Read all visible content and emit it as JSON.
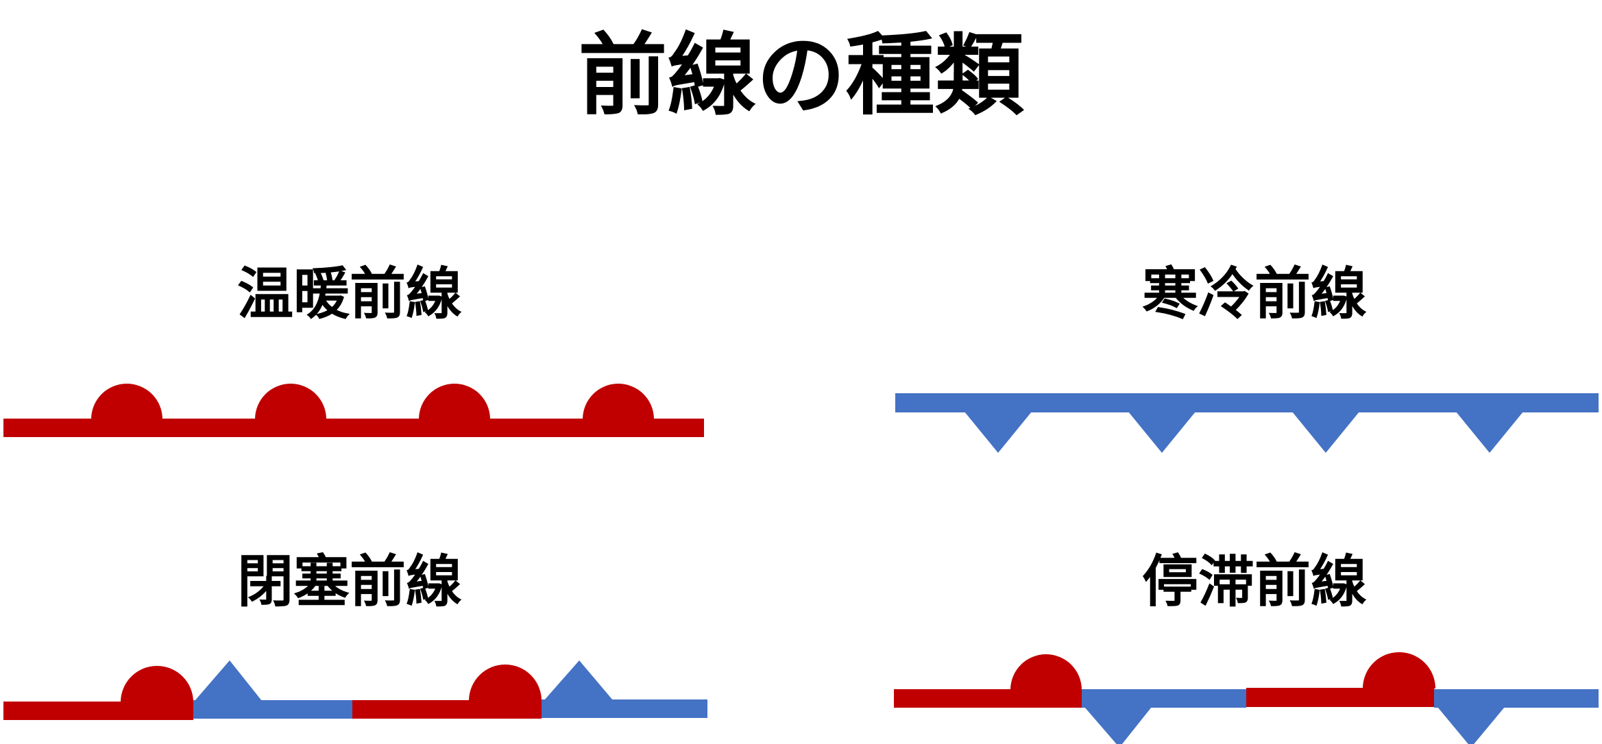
{
  "title": "前線の種類",
  "colors": {
    "warm": "#c00000",
    "cold": "#4472c4"
  },
  "fronts": [
    {
      "id": "warm",
      "label": "温暖前線"
    },
    {
      "id": "cold",
      "label": "寒冷前線"
    },
    {
      "id": "occluded",
      "label": "閉塞前線"
    },
    {
      "id": "stationary",
      "label": "停滞前線"
    }
  ]
}
